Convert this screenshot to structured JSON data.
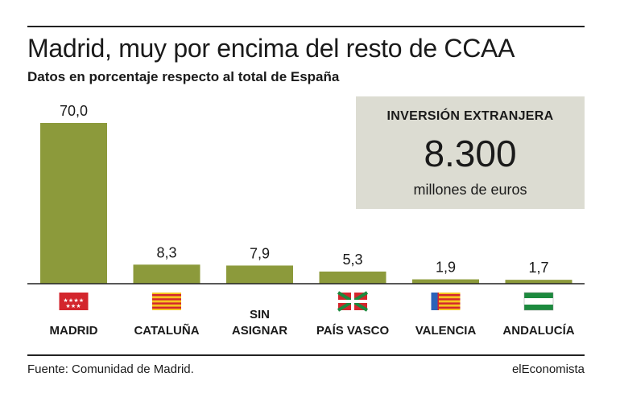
{
  "header": {
    "title": "Madrid, muy por encima del resto de CCAA",
    "subtitle": "Datos en porcentaje respecto al total de España"
  },
  "callout": {
    "title": "INVERSIÓN EXTRANJERA",
    "value": "8.300",
    "unit": "millones de euros"
  },
  "footer": {
    "source": "Fuente: Comunidad de Madrid.",
    "brand": "elEconomista"
  },
  "colors": {
    "bar": "#8c9a3b",
    "baseline": "#222222",
    "callout_bg": "#dcdcd2"
  },
  "chart_data": {
    "type": "bar",
    "categories": [
      [
        "MADRID"
      ],
      [
        "CATALUÑA"
      ],
      [
        "SIN",
        "ASIGNAR"
      ],
      [
        "PAÍS VASCO"
      ],
      [
        "VALENCIA"
      ],
      [
        "ANDALUCÍA"
      ]
    ],
    "values": [
      70.0,
      8.3,
      7.9,
      5.3,
      1.9,
      1.7
    ],
    "value_labels": [
      "70,0",
      "8,3",
      "7,9",
      "5,3",
      "1,9",
      "1,7"
    ],
    "flags": [
      "madrid-flag-icon",
      "catalonia-flag-icon",
      "",
      "basque-flag-icon",
      "valencia-flag-icon",
      "andalusia-flag-icon"
    ],
    "ylim": [
      0,
      70
    ]
  }
}
